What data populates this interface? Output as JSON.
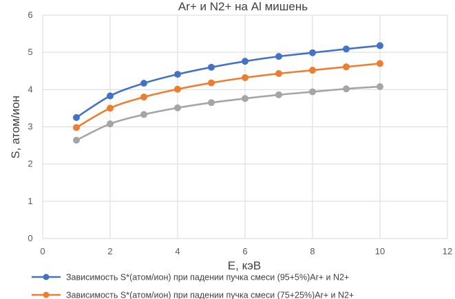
{
  "chart_data": {
    "type": "line",
    "title": "Ar+ и N2+ на Al мишень",
    "xlabel": "E, кэВ",
    "ylabel": "S, атом/ион",
    "xlim": [
      0,
      12
    ],
    "ylim": [
      0,
      6
    ],
    "x_ticks": [
      0,
      2,
      4,
      6,
      8,
      10,
      12
    ],
    "y_ticks": [
      0,
      1,
      2,
      3,
      4,
      5,
      6
    ],
    "grid": true,
    "legend_position": "bottom",
    "x": [
      1,
      2,
      3,
      4,
      5,
      6,
      7,
      8,
      9,
      10
    ],
    "series": [
      {
        "name": "Зависимость S*(атом/ион) при падении пучка смеси (95+5%)Ar+ и N2+",
        "color": "#4472C4",
        "values": [
          3.25,
          3.83,
          4.17,
          4.41,
          4.6,
          4.76,
          4.89,
          4.99,
          5.09,
          5.18
        ]
      },
      {
        "name": "Зависимость S*(атом/ион) при падении пучка смеси (75+25%)Ar+ и N2+",
        "color": "#ED7D31",
        "values": [
          2.98,
          3.5,
          3.8,
          4.01,
          4.18,
          4.32,
          4.43,
          4.52,
          4.61,
          4.7
        ]
      },
      {
        "name": "",
        "color": "#A5A5A5",
        "values": [
          2.64,
          3.08,
          3.33,
          3.51,
          3.65,
          3.76,
          3.86,
          3.94,
          4.02,
          4.08
        ]
      }
    ]
  }
}
